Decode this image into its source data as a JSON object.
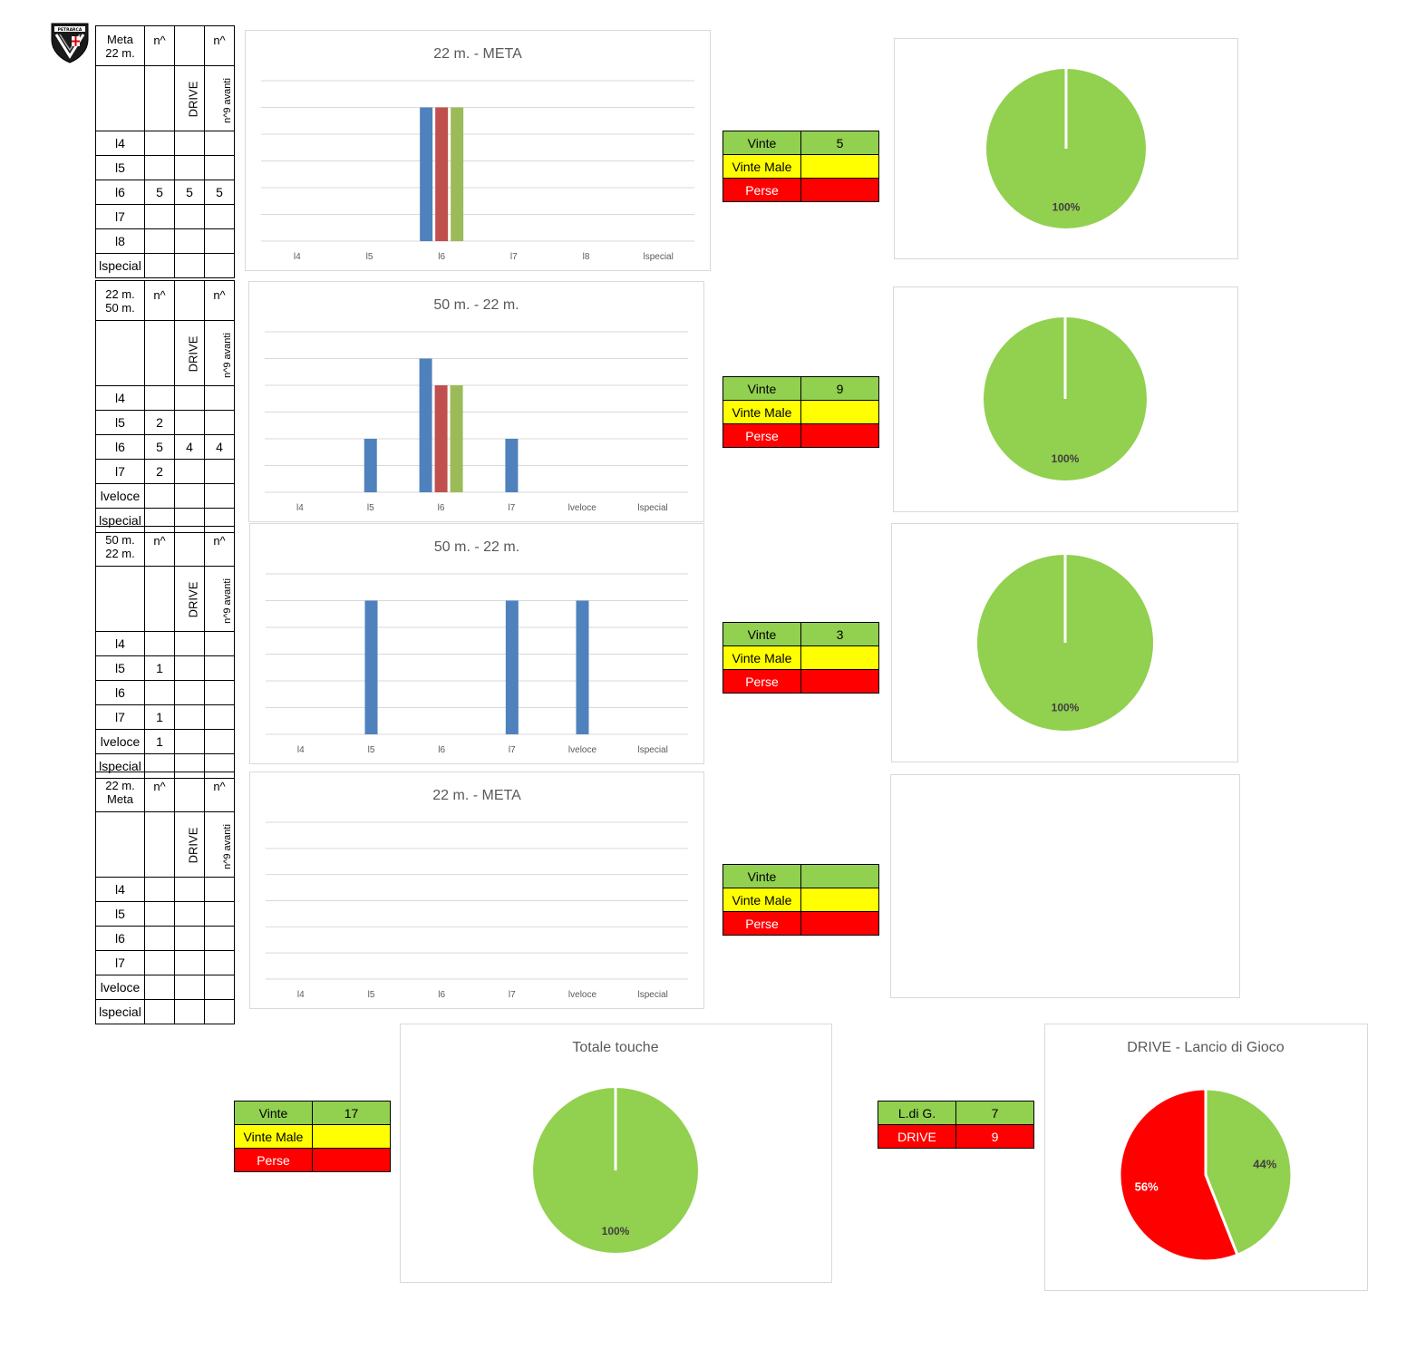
{
  "colors": {
    "green": "#92d050",
    "yellow": "#ffff00",
    "red": "#ff0000",
    "series_blue": "#4f81bd",
    "series_red": "#c0504d",
    "series_green": "#9bbb59",
    "grid": "#d9d9d9",
    "axis_text": "#595959"
  },
  "logo": {
    "icon": "shield-crest-icon",
    "text": "PETRARCA"
  },
  "sections": [
    {
      "table": {
        "title_line1": "Meta",
        "title_line2": "22 m.",
        "col_n": "n^",
        "col_drive": "DRIVE",
        "col_avanti_top": "n^",
        "col_avanti": "n^9 avanti",
        "rows": [
          {
            "label": "l4",
            "n": "",
            "drive": "",
            "avanti": ""
          },
          {
            "label": "l5",
            "n": "",
            "drive": "",
            "avanti": ""
          },
          {
            "label": "l6",
            "n": "5",
            "drive": "5",
            "avanti": "5"
          },
          {
            "label": "l7",
            "n": "",
            "drive": "",
            "avanti": ""
          },
          {
            "label": "l8",
            "n": "",
            "drive": "",
            "avanti": ""
          },
          {
            "label": "lspecial",
            "n": "",
            "drive": "",
            "avanti": ""
          }
        ]
      },
      "legend": {
        "vinte_label": "Vinte",
        "vinte_value": "5",
        "vinte_male_label": "Vinte Male",
        "vinte_male_value": "",
        "perse_label": "Perse",
        "perse_value": ""
      },
      "pie": {
        "slices": [
          {
            "value": 100,
            "color": "#92d050",
            "label": "100%"
          }
        ]
      }
    },
    {
      "table": {
        "title_line1": "22 m.",
        "title_line2": "50 m.",
        "col_n": "n^",
        "col_drive": "DRIVE",
        "col_avanti_top": "n^",
        "col_avanti": "n^9 avanti",
        "rows": [
          {
            "label": "l4",
            "n": "",
            "drive": "",
            "avanti": ""
          },
          {
            "label": "l5",
            "n": "2",
            "drive": "",
            "avanti": ""
          },
          {
            "label": "l6",
            "n": "5",
            "drive": "4",
            "avanti": "4"
          },
          {
            "label": "l7",
            "n": "2",
            "drive": "",
            "avanti": ""
          },
          {
            "label": "lveloce",
            "n": "",
            "drive": "",
            "avanti": ""
          },
          {
            "label": "lspecial",
            "n": "",
            "drive": "",
            "avanti": ""
          }
        ]
      },
      "legend": {
        "vinte_label": "Vinte",
        "vinte_value": "9",
        "vinte_male_label": "Vinte Male",
        "vinte_male_value": "",
        "perse_label": "Perse",
        "perse_value": ""
      },
      "pie": {
        "slices": [
          {
            "value": 100,
            "color": "#92d050",
            "label": "100%"
          }
        ]
      }
    },
    {
      "table": {
        "title_line1": "50 m.",
        "title_line2": "22 m.",
        "col_n": "n^",
        "col_drive": "DRIVE",
        "col_avanti_top": "n^",
        "col_avanti": "n^9 avanti",
        "rows": [
          {
            "label": "l4",
            "n": "",
            "drive": "",
            "avanti": ""
          },
          {
            "label": "l5",
            "n": "1",
            "drive": "",
            "avanti": ""
          },
          {
            "label": "l6",
            "n": "",
            "drive": "",
            "avanti": ""
          },
          {
            "label": "l7",
            "n": "1",
            "drive": "",
            "avanti": ""
          },
          {
            "label": "lveloce",
            "n": "1",
            "drive": "",
            "avanti": ""
          },
          {
            "label": "lspecial",
            "n": "",
            "drive": "",
            "avanti": ""
          }
        ]
      },
      "legend": {
        "vinte_label": "Vinte",
        "vinte_value": "3",
        "vinte_male_label": "Vinte Male",
        "vinte_male_value": "",
        "perse_label": "Perse",
        "perse_value": ""
      },
      "pie": {
        "slices": [
          {
            "value": 100,
            "color": "#92d050",
            "label": "100%"
          }
        ]
      }
    },
    {
      "table": {
        "title_line1": "22 m.",
        "title_line2": "Meta",
        "col_n": "n^",
        "col_drive": "DRIVE",
        "col_avanti_top": "n^",
        "col_avanti": "n^9 avanti",
        "rows": [
          {
            "label": "l4",
            "n": "",
            "drive": "",
            "avanti": ""
          },
          {
            "label": "l5",
            "n": "",
            "drive": "",
            "avanti": ""
          },
          {
            "label": "l6",
            "n": "",
            "drive": "",
            "avanti": ""
          },
          {
            "label": "l7",
            "n": "",
            "drive": "",
            "avanti": ""
          },
          {
            "label": "lveloce",
            "n": "",
            "drive": "",
            "avanti": ""
          },
          {
            "label": "lspecial",
            "n": "",
            "drive": "",
            "avanti": ""
          }
        ]
      },
      "legend": {
        "vinte_label": "Vinte",
        "vinte_value": "",
        "vinte_male_label": "Vinte Male",
        "vinte_male_value": "",
        "perse_label": "Perse",
        "perse_value": ""
      },
      "pie": {
        "slices": []
      }
    }
  ],
  "totals": {
    "legend": {
      "vinte_label": "Vinte",
      "vinte_value": "17",
      "vinte_male_label": "Vinte Male",
      "vinte_male_value": "",
      "perse_label": "Perse",
      "perse_value": ""
    }
  },
  "drive_legend": {
    "ldg_label": "L.di G.",
    "ldg_value": "7",
    "drive_label": "DRIVE",
    "drive_value": "9"
  },
  "chart_data": [
    {
      "type": "bar",
      "title": "22 m. - META",
      "categories": [
        "l4",
        "l5",
        "l6",
        "l7",
        "l8",
        "lspecial"
      ],
      "series": [
        {
          "values": [
            0,
            0,
            5,
            0,
            0,
            0
          ],
          "color": "#4f81bd"
        },
        {
          "values": [
            0,
            0,
            5,
            0,
            0,
            0
          ],
          "color": "#c0504d"
        },
        {
          "values": [
            0,
            0,
            5,
            0,
            0,
            0
          ],
          "color": "#9bbb59"
        }
      ],
      "ylim": [
        0,
        6
      ],
      "grid": true,
      "legend": "none"
    },
    {
      "type": "bar",
      "title": "50 m. - 22 m.",
      "categories": [
        "l4",
        "l5",
        "l6",
        "l7",
        "lveloce",
        "lspecial"
      ],
      "series": [
        {
          "values": [
            0,
            2,
            5,
            2,
            0,
            0
          ],
          "color": "#4f81bd"
        },
        {
          "values": [
            0,
            0,
            4,
            0,
            0,
            0
          ],
          "color": "#c0504d"
        },
        {
          "values": [
            0,
            0,
            4,
            0,
            0,
            0
          ],
          "color": "#9bbb59"
        }
      ],
      "ylim": [
        0,
        6
      ],
      "grid": true,
      "legend": "none"
    },
    {
      "type": "bar",
      "title": "50 m. - 22 m.",
      "categories": [
        "l4",
        "l5",
        "l6",
        "l7",
        "lveloce",
        "lspecial"
      ],
      "series": [
        {
          "values": [
            0,
            1,
            0,
            1,
            1,
            0
          ],
          "color": "#4f81bd"
        },
        {
          "values": [
            0,
            0,
            0,
            0,
            0,
            0
          ],
          "color": "#c0504d"
        },
        {
          "values": [
            0,
            0,
            0,
            0,
            0,
            0
          ],
          "color": "#9bbb59"
        }
      ],
      "ylim": [
        0,
        1.2
      ],
      "grid": true,
      "legend": "none"
    },
    {
      "type": "bar",
      "title": "22 m. - META",
      "categories": [
        "l4",
        "l5",
        "l6",
        "l7",
        "lveloce",
        "lspecial"
      ],
      "series": [
        {
          "values": [
            0,
            0,
            0,
            0,
            0,
            0
          ],
          "color": "#4f81bd"
        },
        {
          "values": [
            0,
            0,
            0,
            0,
            0,
            0
          ],
          "color": "#c0504d"
        },
        {
          "values": [
            0,
            0,
            0,
            0,
            0,
            0
          ],
          "color": "#9bbb59"
        }
      ],
      "ylim": [
        0,
        6
      ],
      "grid": true,
      "legend": "none"
    },
    {
      "type": "pie",
      "title": "Totale  touche",
      "slices": [
        {
          "label": "100%",
          "value": 100,
          "color": "#92d050"
        }
      ]
    },
    {
      "type": "pie",
      "title": "DRIVE - Lancio di Gioco",
      "slices": [
        {
          "label": "44%",
          "value": 44,
          "color": "#92d050",
          "text_color": "#404040"
        },
        {
          "label": "56%",
          "value": 56,
          "color": "#ff0000",
          "text_color": "#ffffff"
        }
      ]
    }
  ]
}
